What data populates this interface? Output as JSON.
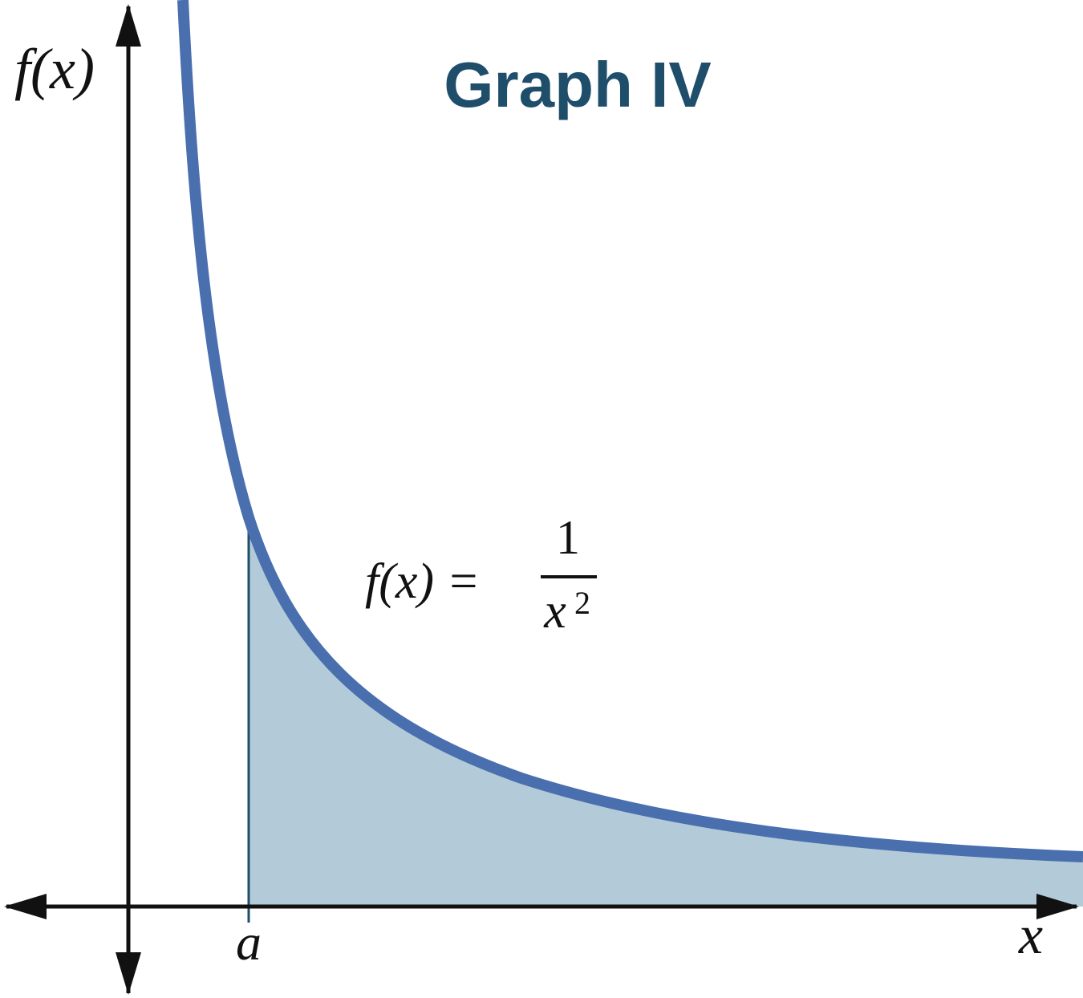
{
  "title": "Graph IV",
  "y_axis_label": "f(x)",
  "x_axis_label": "x",
  "point_label": "a",
  "formula": {
    "lhs": "f(x) =",
    "numerator": "1",
    "denominator": "x",
    "exponent": "2"
  }
}
